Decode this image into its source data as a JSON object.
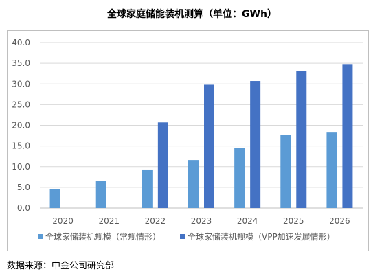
{
  "chart_data": {
    "type": "bar",
    "title": "全球家庭储能装机测算（单位：GWh）",
    "categories": [
      "2020",
      "2021",
      "2022",
      "2023",
      "2024",
      "2025",
      "2026"
    ],
    "series": [
      {
        "name": "全球家储装机规模（常规情形）",
        "color": "#5b9bd5",
        "values": [
          4.5,
          6.6,
          9.3,
          11.6,
          14.5,
          17.7,
          18.4
        ]
      },
      {
        "name": "全球家储装机规模（VPP加速发展情形）",
        "color": "#4472c4",
        "values": [
          null,
          null,
          20.7,
          29.8,
          30.7,
          33.1,
          34.8
        ]
      }
    ],
    "ylim": [
      0,
      40
    ],
    "yticks": [
      "0.0",
      "5.0",
      "10.0",
      "15.0",
      "20.0",
      "25.0",
      "30.0",
      "35.0",
      "40.0"
    ],
    "grid": true,
    "legend_position": "bottom"
  },
  "footer": {
    "source": "数据来源：中金公司研究部"
  }
}
